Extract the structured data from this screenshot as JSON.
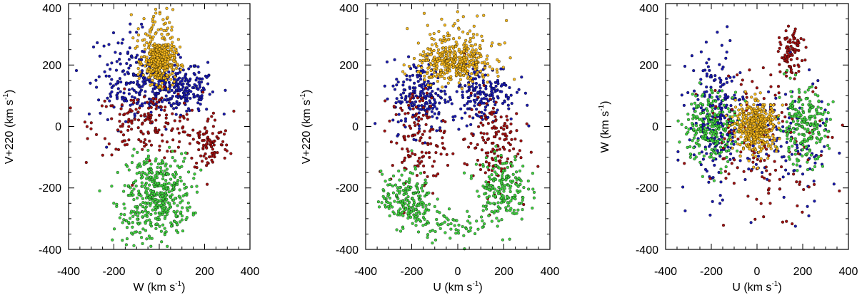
{
  "chart_data": [
    {
      "type": "scatter",
      "title": "",
      "xlabel": "W (km s^-1)",
      "xlabel_main": "W (km s",
      "xlabel_sup": "-1",
      "xlabel_tail": ")",
      "ylabel_main": "V+220 (km s",
      "ylabel_sup": "-1",
      "ylabel_tail": ")",
      "xlim": [
        -400,
        400
      ],
      "ylim": [
        -400,
        400
      ],
      "xticks": [
        -400,
        -200,
        0,
        200,
        400
      ],
      "yticks": [
        -400,
        -200,
        0,
        200,
        400
      ],
      "series": [
        {
          "name": "blue",
          "color": "#1a1ab0",
          "clusters": [
            {
              "cx": 0,
              "cy": 130,
              "sx": 105,
              "sy": 45,
              "n": 260
            },
            {
              "cx": -150,
              "cy": 170,
              "sx": 80,
              "sy": 70,
              "n": 90
            },
            {
              "cx": 120,
              "cy": 110,
              "sx": 60,
              "sy": 35,
              "n": 90
            }
          ]
        },
        {
          "name": "red",
          "color": "#a01010",
          "clusters": [
            {
              "cx": -50,
              "cy": 10,
              "sx": 120,
              "sy": 50,
              "n": 170
            },
            {
              "cx": 220,
              "cy": -60,
              "sx": 45,
              "sy": 45,
              "n": 90
            }
          ]
        },
        {
          "name": "green",
          "color": "#3fd23f",
          "clusters": [
            {
              "cx": 0,
              "cy": -220,
              "sx": 70,
              "sy": 65,
              "n": 380
            },
            {
              "cx": -100,
              "cy": -300,
              "sx": 50,
              "sy": 40,
              "n": 60
            }
          ]
        },
        {
          "name": "orange",
          "color": "#f5b71c",
          "clusters": [
            {
              "cx": 0,
              "cy": 210,
              "sx": 35,
              "sy": 35,
              "n": 380
            },
            {
              "cx": -20,
              "cy": 300,
              "sx": 40,
              "sy": 40,
              "n": 60
            }
          ]
        }
      ]
    },
    {
      "type": "scatter",
      "title": "",
      "xlabel": "U (km s^-1)",
      "xlabel_main": "U (km s",
      "xlabel_sup": "-1",
      "xlabel_tail": ")",
      "ylabel_main": "V+220 (km s",
      "ylabel_sup": "-1",
      "ylabel_tail": ")",
      "xlim": [
        -400,
        400
      ],
      "ylim": [
        -400,
        400
      ],
      "xticks": [
        -400,
        -200,
        0,
        200,
        400
      ],
      "yticks": [
        -400,
        -200,
        0,
        200,
        400
      ],
      "series": [
        {
          "name": "blue",
          "color": "#1a1ab0",
          "clusters": [
            {
              "cx": -160,
              "cy": 100,
              "sx": 60,
              "sy": 60,
              "n": 200
            },
            {
              "cx": 110,
              "cy": 110,
              "sx": 70,
              "sy": 50,
              "n": 180
            }
          ]
        },
        {
          "name": "red",
          "color": "#a01010",
          "clusters": [
            {
              "cx": -170,
              "cy": -40,
              "sx": 60,
              "sy": 80,
              "n": 130
            },
            {
              "cx": 150,
              "cy": -50,
              "sx": 60,
              "sy": 80,
              "n": 150
            }
          ]
        },
        {
          "name": "green",
          "color": "#3fd23f",
          "clusters": [
            {
              "cx": -220,
              "cy": -240,
              "sx": 55,
              "sy": 45,
              "n": 200
            },
            {
              "cx": 190,
              "cy": -200,
              "sx": 55,
              "sy": 55,
              "n": 200
            },
            {
              "cx": -20,
              "cy": -320,
              "sx": 80,
              "sy": 25,
              "n": 60
            }
          ]
        },
        {
          "name": "orange",
          "color": "#f5b71c",
          "clusters": [
            {
              "cx": -10,
              "cy": 205,
              "sx": 80,
              "sy": 30,
              "n": 380
            },
            {
              "cx": 0,
              "cy": 290,
              "sx": 90,
              "sy": 40,
              "n": 60
            }
          ]
        }
      ]
    },
    {
      "type": "scatter",
      "title": "",
      "xlabel": "U (km s^-1)",
      "xlabel_main": "U (km s",
      "xlabel_sup": "-1",
      "xlabel_tail": ")",
      "ylabel_main": "W (km s",
      "ylabel_sup": "-1",
      "ylabel_tail": ")",
      "xlim": [
        -400,
        400
      ],
      "ylim": [
        -400,
        400
      ],
      "xticks": [
        -400,
        -200,
        0,
        200,
        400
      ],
      "yticks": [
        -400,
        -200,
        0,
        200,
        400
      ],
      "series": [
        {
          "name": "blue",
          "color": "#1a1ab0",
          "clusters": [
            {
              "cx": -180,
              "cy": 20,
              "sx": 60,
              "sy": 110,
              "n": 250
            },
            {
              "cx": 130,
              "cy": -60,
              "sx": 90,
              "sy": 110,
              "n": 110
            }
          ]
        },
        {
          "name": "red",
          "color": "#a01010",
          "clusters": [
            {
              "cx": 150,
              "cy": 240,
              "sx": 25,
              "sy": 35,
              "n": 90
            },
            {
              "cx": 40,
              "cy": -40,
              "sx": 140,
              "sy": 120,
              "n": 150
            }
          ]
        },
        {
          "name": "green",
          "color": "#3fd23f",
          "clusters": [
            {
              "cx": -200,
              "cy": 0,
              "sx": 60,
              "sy": 60,
              "n": 220
            },
            {
              "cx": 200,
              "cy": 0,
              "sx": 55,
              "sy": 60,
              "n": 220
            }
          ]
        },
        {
          "name": "orange",
          "color": "#f5b71c",
          "clusters": [
            {
              "cx": 0,
              "cy": 0,
              "sx": 45,
              "sy": 40,
              "n": 420
            }
          ]
        }
      ]
    }
  ]
}
